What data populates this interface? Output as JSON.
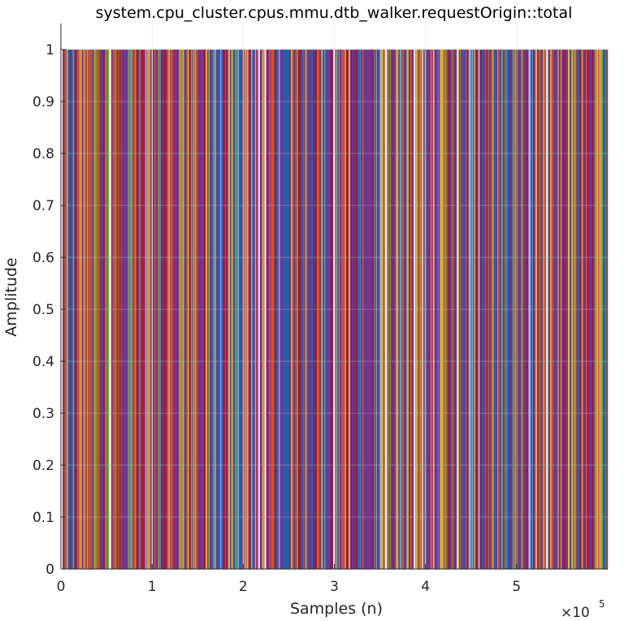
{
  "chart_data": {
    "type": "line",
    "title": "system.cpu_cluster.cpus.mmu.dtb_walker.requestOrigin::total",
    "xlabel": "Samples (n)",
    "ylabel": "Amplitude",
    "x_multiplier": {
      "base": "×10",
      "exponent": "5"
    },
    "xlim": [
      0,
      600000
    ],
    "ylim": [
      0,
      1.05
    ],
    "xticks": [
      0,
      1,
      2,
      3,
      4,
      5
    ],
    "xtick_labels": [
      "0",
      "1",
      "2",
      "3",
      "4",
      "5"
    ],
    "yticks": [
      0,
      0.1,
      0.2,
      0.3,
      0.4,
      0.5,
      0.6,
      0.7,
      0.8,
      0.9,
      1
    ],
    "ytick_labels": [
      "0",
      "0.1",
      "0.2",
      "0.3",
      "0.4",
      "0.5",
      "0.6",
      "0.7",
      "0.8",
      "0.9",
      "1"
    ],
    "grid": true,
    "signal_levels": [
      0,
      1
    ],
    "palette": [
      "#0072BD",
      "#D95319",
      "#EDB120",
      "#7E2F8E",
      "#77AC30",
      "#4DBEEE",
      "#A2142F"
    ],
    "background_color": "#ffffff",
    "note_data": "Dense binary pulse train (values 0 or 1) across ~600k samples; individual pulses not resolvable."
  }
}
